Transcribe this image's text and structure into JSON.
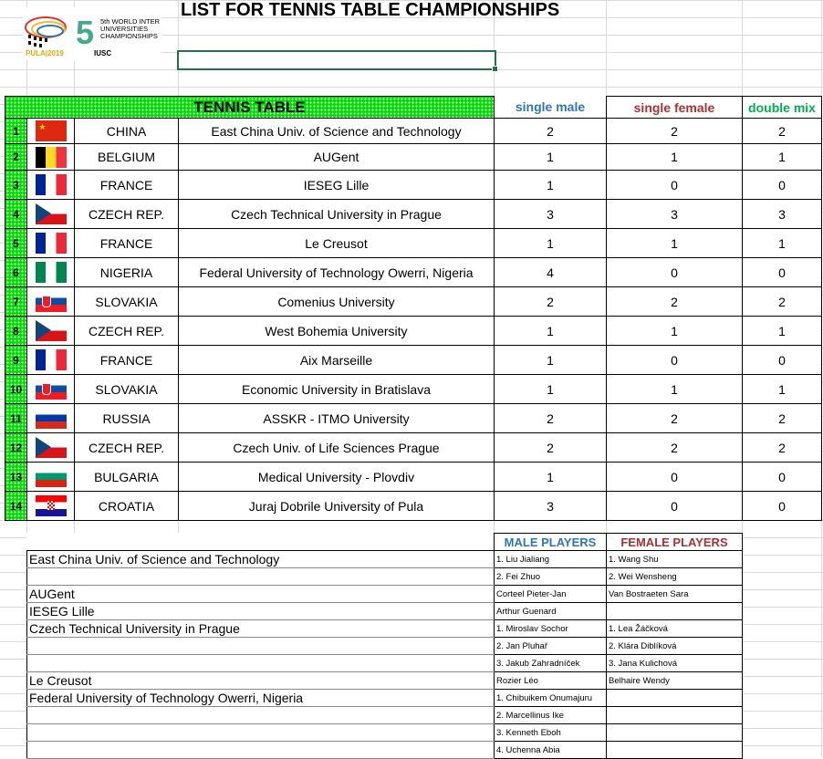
{
  "logo": {
    "text": "5th WORLD INTER UNIVERSITIES CHAMPIONSHIPS",
    "sub": "PULA|2019",
    "org": "IUSC"
  },
  "title": "LIST FOR TENNIS TABLE CHAMPIONSHIPS",
  "table": {
    "header": "TENNIS TABLE",
    "columns": [
      "single male",
      "single female",
      "double mix"
    ],
    "colors": {
      "single male": "#2e75b6",
      "single female": "#a83232",
      "double mix": "#00b050"
    },
    "rows": [
      {
        "n": "1",
        "flag": "china",
        "country": "CHINA",
        "uni": "East China Univ. of Science and Technology",
        "sm": "2",
        "sf": "2",
        "dm": "2"
      },
      {
        "n": "2",
        "flag": "belgium",
        "country": "BELGIUM",
        "uni": "AUGent",
        "sm": "1",
        "sf": "1",
        "dm": "1"
      },
      {
        "n": "3",
        "flag": "france",
        "country": "FRANCE",
        "uni": "IESEG Lille",
        "sm": "1",
        "sf": "0",
        "dm": "0"
      },
      {
        "n": "4",
        "flag": "czech",
        "country": "CZECH REP.",
        "uni": "Czech Technical University in Prague",
        "sm": "3",
        "sf": "3",
        "dm": "3"
      },
      {
        "n": "5",
        "flag": "france",
        "country": "FRANCE",
        "uni": "Le Creusot",
        "sm": "1",
        "sf": "1",
        "dm": "1"
      },
      {
        "n": "6",
        "flag": "nigeria",
        "country": "NIGERIA",
        "uni": "Federal University of Technology Owerri, Nigeria",
        "sm": "4",
        "sf": "0",
        "dm": "0"
      },
      {
        "n": "7",
        "flag": "slovakia",
        "country": "SLOVAKIA",
        "uni": "Comenius University",
        "sm": "2",
        "sf": "2",
        "dm": "2"
      },
      {
        "n": "8",
        "flag": "czech",
        "country": "CZECH REP.",
        "uni": "West Bohemia University",
        "sm": "1",
        "sf": "1",
        "dm": "1"
      },
      {
        "n": "9",
        "flag": "france",
        "country": "FRANCE",
        "uni": "Aix Marseille",
        "sm": "1",
        "sf": "0",
        "dm": "0"
      },
      {
        "n": "10",
        "flag": "slovakia",
        "country": "SLOVAKIA",
        "uni": "Economic University in Bratislava",
        "sm": "1",
        "sf": "1",
        "dm": "1"
      },
      {
        "n": "11",
        "flag": "russia",
        "country": "RUSSIA",
        "uni": "ASSKR - ITMO University",
        "sm": "2",
        "sf": "2",
        "dm": "2"
      },
      {
        "n": "12",
        "flag": "czech",
        "country": "CZECH REP.",
        "uni": "Czech Univ. of Life Sciences Prague",
        "sm": "2",
        "sf": "2",
        "dm": "2"
      },
      {
        "n": "13",
        "flag": "bulgaria",
        "country": "BULGARIA",
        "uni": "Medical University - Plovdiv",
        "sm": "1",
        "sf": "0",
        "dm": "0"
      },
      {
        "n": "14",
        "flag": "croatia",
        "country": "CROATIA",
        "uni": "Juraj Dobrile University of Pula",
        "sm": "3",
        "sf": "0",
        "dm": "0"
      }
    ]
  },
  "players": {
    "male_header": "MALE PLAYERS",
    "female_header": "FEMALE PLAYERS",
    "rows": [
      {
        "uni": "East China Univ. of Science and Technology",
        "m": "1. Liu Jialiang",
        "f": "1. Wang Shu"
      },
      {
        "uni": "",
        "m": "2. Fei Zhuo",
        "f": "2. Wei Wensheng"
      },
      {
        "uni": "AUGent",
        "m": "Corteel Pieter-Jan",
        "f": "Van Bostraeten Sara"
      },
      {
        "uni": "IESEG Lille",
        "m": "Arthur Guenard",
        "f": ""
      },
      {
        "uni": "Czech Technical University in Prague",
        "m": "1. Miroslav Sochor",
        "f": "1. Lea Žáčková"
      },
      {
        "uni": "",
        "m": "2. Jan Pluhař",
        "f": "2. Klára Diblíková"
      },
      {
        "uni": "",
        "m": "3. Jakub Zahradníček",
        "f": "3. Jana Kulichová"
      },
      {
        "uni": "Le Creusot",
        "m": "Rozier Léo",
        "f": "Belhaire Wendy"
      },
      {
        "uni": "Federal University of Technology Owerri, Nigeria",
        "m": "1. Chibuikem Onumajuru",
        "f": ""
      },
      {
        "uni": "",
        "m": "2. Marcellinus Ike",
        "f": ""
      },
      {
        "uni": "",
        "m": "3. Kenneth Eboh",
        "f": ""
      },
      {
        "uni": "",
        "m": "4. Uchenna Abia",
        "f": ""
      }
    ]
  }
}
